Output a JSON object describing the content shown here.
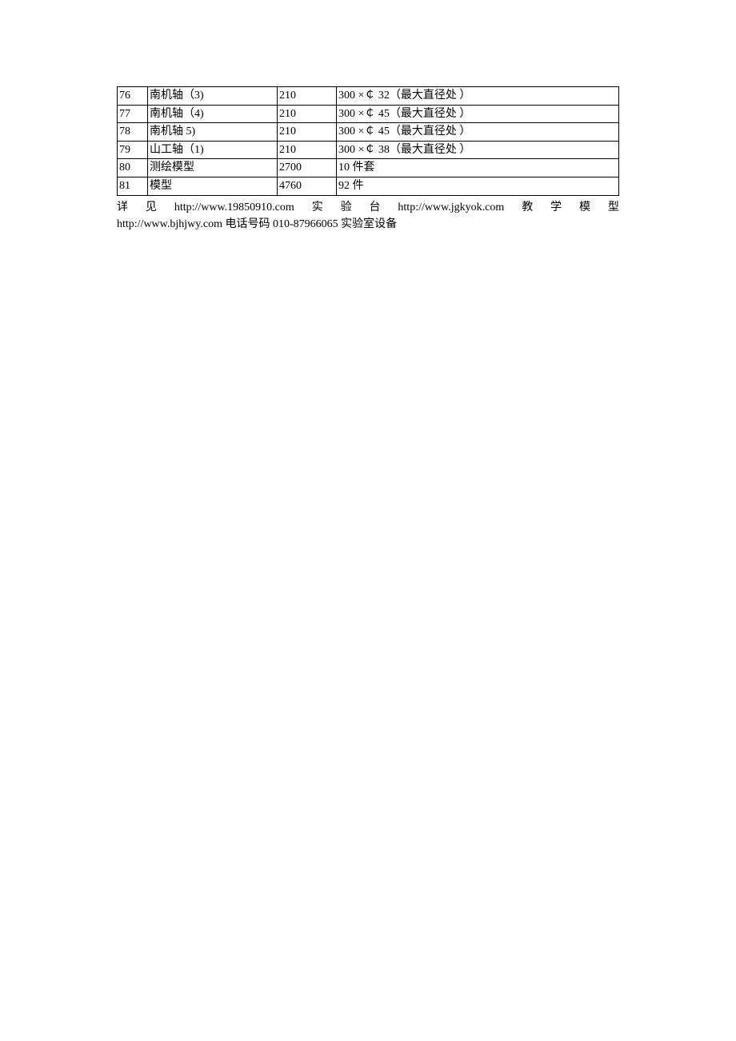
{
  "table": {
    "rows": [
      {
        "num": "76",
        "name": "南机轴（3)",
        "qty": "210",
        "desc": "300 ×￠ 32（最大直径处 ）"
      },
      {
        "num": "77",
        "name": "南机轴（4)",
        "qty": "210",
        "desc": "300 ×￠ 45（最大直径处 ）"
      },
      {
        "num": "78",
        "name": "南机轴 5)",
        "qty": "210",
        "desc": "300 ×￠ 45（最大直径处 ）"
      },
      {
        "num": "79",
        "name": "山工轴（1)",
        "qty": "210",
        "desc": "300 ×￠ 38（最大直径处 ）"
      },
      {
        "num": "80",
        "name": "测绘模型",
        "qty": "2700",
        "desc": "10 件套"
      },
      {
        "num": "81",
        "name": "模型",
        "qty": "4760",
        "desc": "92 件"
      }
    ],
    "column_widths": [
      "38px",
      "162px",
      "74px",
      "auto"
    ],
    "border_color": "#000000",
    "font_size": 14,
    "text_color": "#000000",
    "background_color": "#ffffff"
  },
  "footer": {
    "line1_parts": {
      "p1": "详",
      "p2": "见",
      "p3": "http://www.19850910.com",
      "p4": "实",
      "p5": "验",
      "p6": "台",
      "p7": "http://www.jgkyok.com",
      "p8": "教",
      "p9": "学",
      "p10": "模",
      "p11": "型"
    },
    "line2": "http://www.bjhjwy.com 电话号码 010-87966065 实验室设备",
    "font_size": 14,
    "text_color": "#000000"
  }
}
